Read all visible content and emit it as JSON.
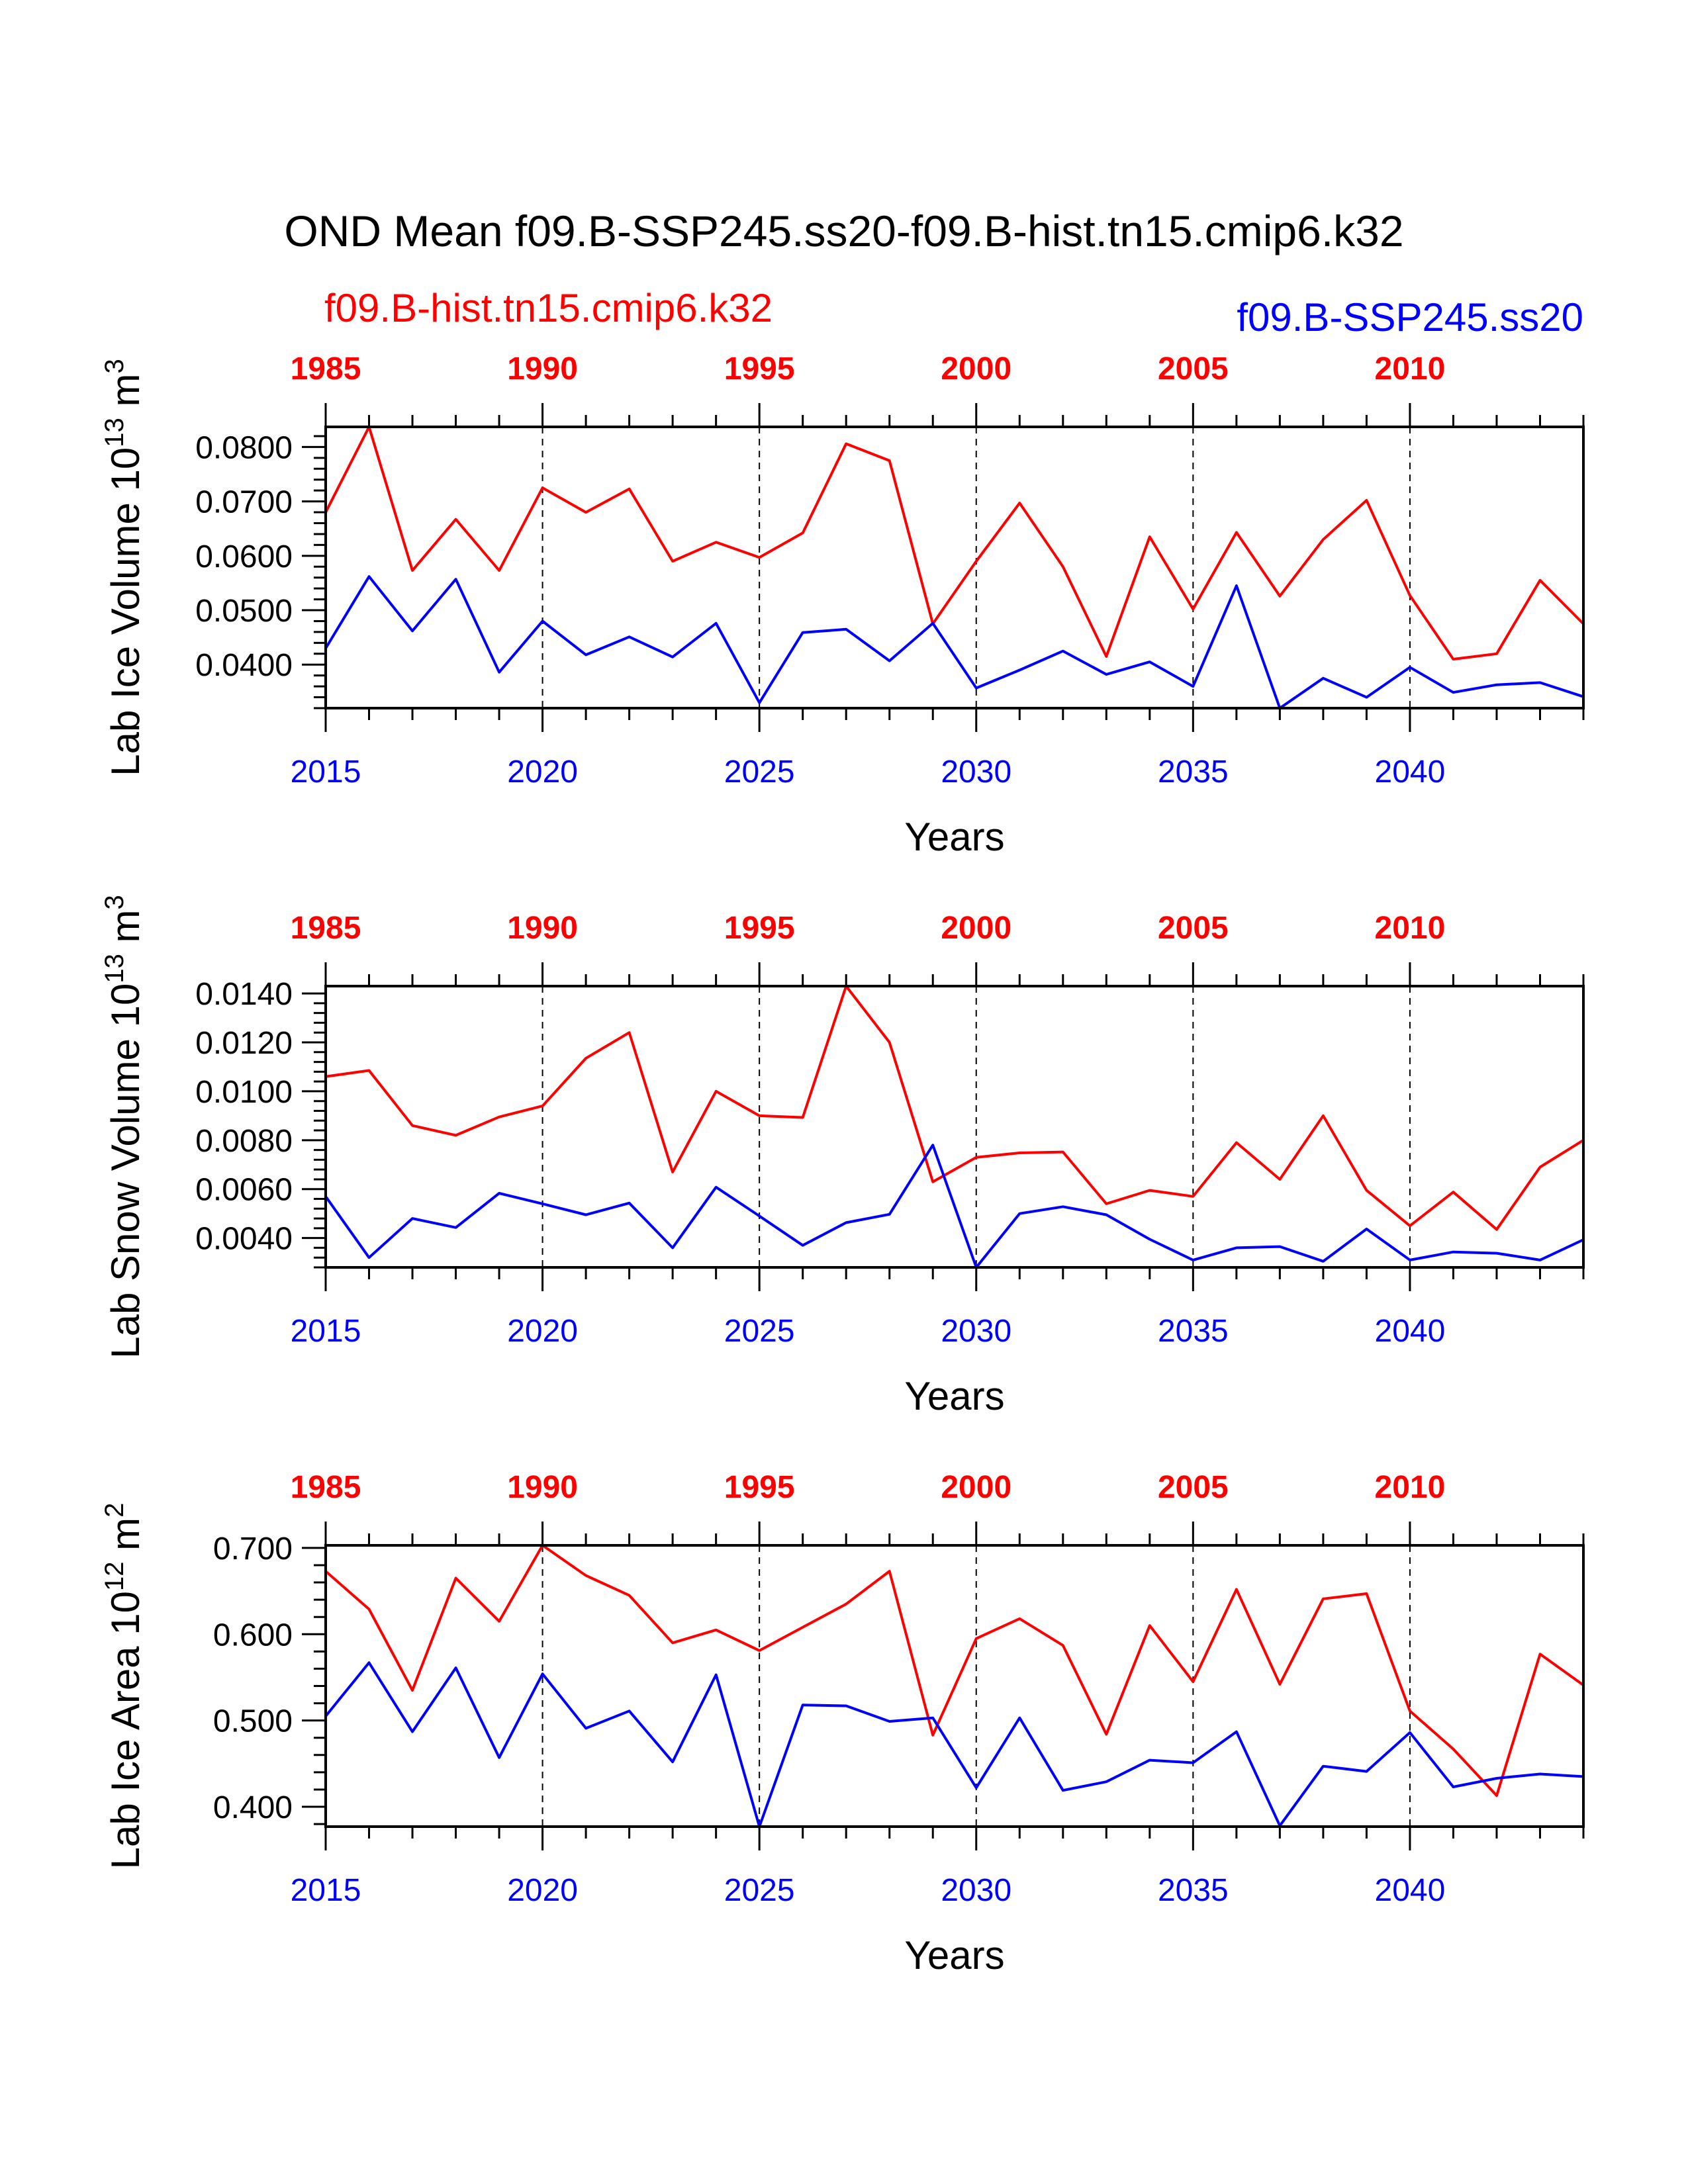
{
  "title": "OND Mean f09.B-SSP245.ss20-f09.B-hist.tn15.cmip6.k32",
  "legend": {
    "hist": {
      "label": "f09.B-hist.tn15.cmip6.k32",
      "color": "#ff0000"
    },
    "ssp": {
      "label": "f09.B-SSP245.ss20",
      "color": "#0000ff"
    }
  },
  "chart_data": [
    {
      "type": "line",
      "ylabel_main": "Lab Ice Volume 10",
      "ylabel_exp": "13",
      "ylabel_unit": " m",
      "ylabel_unit_exp": "3",
      "xlabel": "Years",
      "xlim": [
        2015,
        2044
      ],
      "ylim": [
        0.032,
        0.0837
      ],
      "yticks": [
        0.04,
        0.05,
        0.06,
        0.07,
        0.08
      ],
      "ytick_labels": [
        "0.0400",
        "0.0500",
        "0.0600",
        "0.0700",
        "0.0800"
      ],
      "yminor": 0.002,
      "bottom_ticks": [
        2015,
        2020,
        2025,
        2030,
        2035,
        2040
      ],
      "bottom_tick_labels": [
        "2015",
        "2020",
        "2025",
        "2030",
        "2035",
        "2040"
      ],
      "top_tick_labels": [
        "1985",
        "1990",
        "1995",
        "2000",
        "2005",
        "2010"
      ],
      "grid": "dashed vertical at major x ticks",
      "series": [
        {
          "color": "#ff0000",
          "values": [
            0.068,
            0.0837,
            0.0573,
            0.0667,
            0.0573,
            0.0725,
            0.068,
            0.0723,
            0.059,
            0.0625,
            0.0597,
            0.0642,
            0.0806,
            0.0775,
            0.0475,
            0.059,
            0.0697,
            0.058,
            0.0415,
            0.0635,
            0.0502,
            0.0643,
            0.0526,
            0.063,
            0.0702,
            0.0527,
            0.041,
            0.042,
            0.0555,
            0.0475
          ]
        },
        {
          "color": "#0000ff",
          "values": [
            0.043,
            0.0562,
            0.0462,
            0.0557,
            0.0386,
            0.048,
            0.0418,
            0.0451,
            0.0414,
            0.0476,
            0.033,
            0.0459,
            0.0465,
            0.0407,
            0.0476,
            0.0357,
            0.039,
            0.0425,
            0.0382,
            0.0405,
            0.036,
            0.0545,
            0.032,
            0.0375,
            0.034,
            0.0395,
            0.0349,
            0.0363,
            0.0367,
            0.0341
          ]
        }
      ]
    },
    {
      "type": "line",
      "ylabel_main": "Lab Snow Volume 10",
      "ylabel_exp": "13",
      "ylabel_unit": " m",
      "ylabel_unit_exp": "3",
      "xlabel": "Years",
      "xlim": [
        2015,
        2044
      ],
      "ylim": [
        0.0028,
        0.0143
      ],
      "yticks": [
        0.004,
        0.006,
        0.008,
        0.01,
        0.012,
        0.014
      ],
      "ytick_labels": [
        "0.0040",
        "0.0060",
        "0.0080",
        "0.0100",
        "0.0120",
        "0.0140"
      ],
      "yminor": 0.0004,
      "bottom_ticks": [
        2015,
        2020,
        2025,
        2030,
        2035,
        2040
      ],
      "bottom_tick_labels": [
        "2015",
        "2020",
        "2025",
        "2030",
        "2035",
        "2040"
      ],
      "top_tick_labels": [
        "1985",
        "1990",
        "1995",
        "2000",
        "2005",
        "2010"
      ],
      "grid": "dashed vertical at major x ticks",
      "series": [
        {
          "color": "#ff0000",
          "values": [
            0.0106,
            0.01085,
            0.0086,
            0.0082,
            0.00895,
            0.0094,
            0.01135,
            0.0124,
            0.0067,
            0.01,
            0.009,
            0.00893,
            0.0143,
            0.012,
            0.0063,
            0.0073,
            0.00748,
            0.00752,
            0.0054,
            0.00595,
            0.0057,
            0.0079,
            0.0064,
            0.009,
            0.00595,
            0.0045,
            0.00588,
            0.00435,
            0.0069,
            0.008
          ]
        },
        {
          "color": "#0000ff",
          "values": [
            0.0057,
            0.0032,
            0.0048,
            0.00443,
            0.00583,
            0.0054,
            0.00495,
            0.00543,
            0.0036,
            0.00608,
            0.0049,
            0.0037,
            0.00463,
            0.00497,
            0.0078,
            0.0028,
            0.005,
            0.00528,
            0.00495,
            0.00395,
            0.0031,
            0.0036,
            0.00365,
            0.00305,
            0.00437,
            0.0031,
            0.00343,
            0.00338,
            0.0031,
            0.00393
          ]
        }
      ]
    },
    {
      "type": "line",
      "ylabel_main": "Lab Ice Area 10",
      "ylabel_exp": "12",
      "ylabel_unit": " m",
      "ylabel_unit_exp": "2",
      "xlabel": "Years",
      "xlim": [
        2015,
        2044
      ],
      "ylim": [
        0.377,
        0.703
      ],
      "yticks": [
        0.4,
        0.5,
        0.6,
        0.7
      ],
      "ytick_labels": [
        "0.400",
        "0.500",
        "0.600",
        "0.700"
      ],
      "yminor": 0.02,
      "bottom_ticks": [
        2015,
        2020,
        2025,
        2030,
        2035,
        2040
      ],
      "bottom_tick_labels": [
        "2015",
        "2020",
        "2025",
        "2030",
        "2035",
        "2040"
      ],
      "top_tick_labels": [
        "1985",
        "1990",
        "1995",
        "2000",
        "2005",
        "2010"
      ],
      "grid": "dashed vertical at major x ticks",
      "series": [
        {
          "color": "#ff0000",
          "values": [
            0.673,
            0.629,
            0.535,
            0.665,
            0.615,
            0.703,
            0.668,
            0.645,
            0.59,
            0.605,
            0.581,
            0.608,
            0.635,
            0.673,
            0.483,
            0.595,
            0.618,
            0.587,
            0.484,
            0.61,
            0.545,
            0.652,
            0.542,
            0.641,
            0.647,
            0.511,
            0.467,
            0.413,
            0.577,
            0.541
          ]
        },
        {
          "color": "#0000ff",
          "values": [
            0.505,
            0.567,
            0.487,
            0.561,
            0.457,
            0.554,
            0.491,
            0.511,
            0.452,
            0.553,
            0.377,
            0.518,
            0.517,
            0.499,
            0.503,
            0.422,
            0.503,
            0.419,
            0.429,
            0.454,
            0.451,
            0.487,
            0.378,
            0.447,
            0.441,
            0.486,
            0.423,
            0.433,
            0.438,
            0.435
          ]
        }
      ]
    }
  ]
}
